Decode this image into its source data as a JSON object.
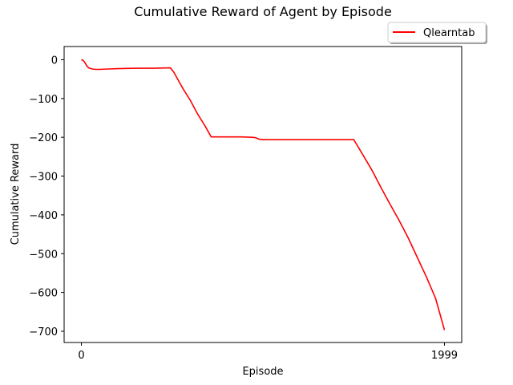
{
  "chart_data": {
    "type": "line",
    "title": "Cumulative Reward of Agent by Episode",
    "xlabel": "Episode",
    "ylabel": "Cumulative Reward",
    "xlim": [
      -95,
      2094
    ],
    "ylim": [
      -729,
      34
    ],
    "x_ticks": [
      0,
      1999
    ],
    "y_ticks": [
      0,
      -100,
      -200,
      -300,
      -400,
      -500,
      -600,
      -700
    ],
    "grid": false,
    "legend_position": "top-right, above plot",
    "series": [
      {
        "name": "Qlearntab",
        "color": "#ff0000",
        "x": [
          0,
          10,
          20,
          30,
          40,
          60,
          80,
          100,
          150,
          200,
          300,
          400,
          490,
          510,
          530,
          560,
          600,
          640,
          680,
          715,
          800,
          880,
          940,
          960,
          980,
          1000,
          1100,
          1200,
          1300,
          1400,
          1500,
          1505,
          1550,
          1600,
          1650,
          1700,
          1750,
          1800,
          1850,
          1900,
          1950,
          1999
        ],
        "values": [
          0,
          -2,
          -8,
          -16,
          -21,
          -24,
          -25,
          -25,
          -24,
          -23,
          -22,
          -22,
          -21,
          -33,
          -50,
          -75,
          -105,
          -140,
          -170,
          -199,
          -199,
          -199,
          -200,
          -201,
          -205,
          -206,
          -206,
          -206,
          -206,
          -206,
          -206,
          -210,
          -245,
          -285,
          -330,
          -373,
          -415,
          -460,
          -510,
          -560,
          -615,
          -697
        ]
      }
    ]
  }
}
